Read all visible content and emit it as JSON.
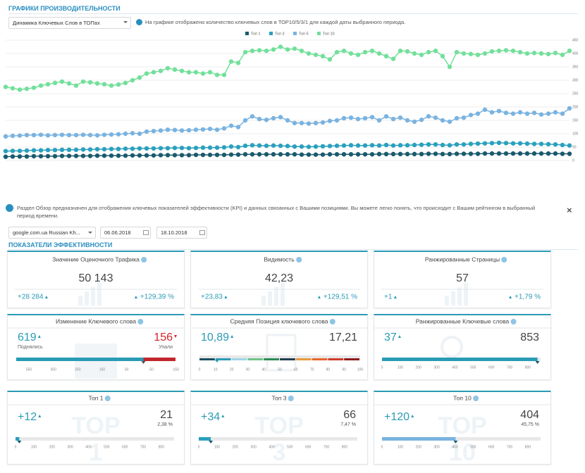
{
  "header": {
    "title": "ГРАФИКИ ПРОИЗВОДИТЕЛЬНОСТИ",
    "select": "Динамика Ключевых Слов в ТОПах",
    "info": "На графике отображено количество ключевых слов в ТОР10/5/3/1 для каждой даты выбранного периода."
  },
  "chart_data": {
    "type": "line",
    "series": [
      {
        "name": "Топ 1",
        "color": "#1b5a6e",
        "values": [
          14,
          15,
          15,
          15,
          16,
          16,
          16,
          16,
          17,
          17,
          17,
          17,
          17,
          18,
          18,
          18,
          18,
          18,
          19,
          19,
          19,
          19,
          20,
          20,
          20,
          20,
          20,
          21,
          21,
          21,
          21,
          21,
          22,
          22,
          23,
          23,
          23,
          23,
          23,
          23,
          23,
          23,
          22,
          22,
          22,
          22,
          23,
          23,
          23,
          23,
          23,
          23,
          23,
          24,
          24,
          24,
          24,
          24,
          24,
          24,
          25,
          25,
          24,
          24,
          25,
          25,
          25,
          25,
          26,
          26,
          26,
          26,
          26,
          26,
          26,
          26,
          26,
          26,
          26,
          25,
          25
        ]
      },
      {
        "name": "Топ 3",
        "color": "#2aa0be",
        "values": [
          35,
          36,
          36,
          37,
          38,
          38,
          39,
          39,
          40,
          40,
          40,
          41,
          41,
          42,
          42,
          43,
          43,
          44,
          44,
          45,
          45,
          45,
          46,
          46,
          47,
          47,
          46,
          47,
          48,
          48,
          48,
          49,
          52,
          50,
          55,
          57,
          56,
          55,
          56,
          55,
          54,
          52,
          52,
          51,
          52,
          53,
          54,
          55,
          56,
          57,
          56,
          56,
          57,
          56,
          58,
          56,
          57,
          57,
          58,
          59,
          60,
          60,
          58,
          57,
          60,
          60,
          62,
          63,
          64,
          65,
          66,
          65,
          64,
          64,
          63,
          62,
          62,
          61,
          60,
          58,
          56
        ]
      },
      {
        "name": "Топ 5",
        "color": "#7ab3e0",
        "values": [
          90,
          92,
          93,
          95,
          95,
          96,
          94,
          95,
          96,
          95,
          95,
          96,
          95,
          94,
          96,
          97,
          98,
          100,
          102,
          100,
          108,
          110,
          112,
          115,
          114,
          112,
          113,
          115,
          116,
          118,
          115,
          120,
          130,
          125,
          150,
          165,
          155,
          152,
          158,
          162,
          150,
          140,
          140,
          138,
          140,
          142,
          148,
          150,
          158,
          160,
          155,
          158,
          162,
          150,
          165,
          155,
          160,
          150,
          145,
          152,
          165,
          160,
          150,
          145,
          158,
          160,
          170,
          175,
          190,
          180,
          185,
          178,
          175,
          180,
          175,
          178,
          172,
          175,
          180,
          175,
          195
        ]
      },
      {
        "name": "Топ 10",
        "color": "#72e09a",
        "values": [
          275,
          270,
          265,
          268,
          272,
          280,
          285,
          290,
          295,
          288,
          280,
          295,
          292,
          288,
          285,
          280,
          284,
          290,
          300,
          310,
          325,
          330,
          335,
          345,
          340,
          335,
          330,
          330,
          325,
          330,
          320,
          320,
          370,
          365,
          405,
          410,
          412,
          410,
          415,
          425,
          415,
          418,
          410,
          400,
          395,
          390,
          378,
          405,
          410,
          400,
          395,
          405,
          410,
          400,
          390,
          380,
          410,
          408,
          400,
          395,
          405,
          410,
          390,
          350,
          405,
          400,
          398,
          395,
          400,
          408,
          410,
          412,
          410,
          405,
          400,
          402,
          400,
          398,
          402,
          395,
          410
        ]
      }
    ],
    "ylim": [
      0,
      450
    ],
    "yticks": [
      0,
      50,
      100,
      150,
      200,
      250,
      300,
      350,
      400,
      450
    ],
    "grid": true,
    "legend": "top"
  },
  "notice": {
    "text": "Раздел Обзор предназначен для отображения ключевых показателей эффективности (KPI) и данных связанных с Вашими позициями. Вы можете легко понять, что происходит с Вашим рейтингом в выбранный период времени.",
    "close": "×"
  },
  "filters": {
    "domain": "google.com.ua Russian Kh...",
    "date_from": "06.06.2018",
    "date_to": "18.10.2018"
  },
  "kpi": {
    "title": "ПОКАЗАТЕЛИ ЭФФЕКТИВНОСТИ",
    "cards": [
      {
        "kind": "summary",
        "title": "Значение Оценочного Трафика",
        "value": "50 143",
        "left": "+28 284",
        "right": "+129,39 %"
      },
      {
        "kind": "summary",
        "title": "Видимость",
        "value": "42,23",
        "left": "+23,83",
        "right": "+129,51 %"
      },
      {
        "kind": "summary",
        "title": "Ранжированные Страницы",
        "value": 57,
        "left": "+1",
        "right": "+1,79 %"
      },
      {
        "kind": "change",
        "title": "Изменение Ключевого слова",
        "left": 619,
        "left_caption": "Поднялись",
        "right": 156,
        "right_caption": "Упали",
        "ticks": [
          "550",
          "350",
          "250",
          "150",
          "50",
          "-50",
          "-150"
        ]
      },
      {
        "kind": "position",
        "title": "Средняя Позиция ключевого слова",
        "left": {
          "value": 10.89,
          "label": "10,89"
        },
        "right": "17,21",
        "lim": [
          0,
          100
        ],
        "ticks": [
          0,
          10,
          20,
          30,
          40,
          50,
          60,
          70,
          80,
          90,
          100
        ]
      },
      {
        "kind": "count",
        "title": "Ранжированные Ключевые слова",
        "left": "37",
        "right": 853,
        "lim": [
          0,
          870
        ],
        "ticks": [
          0,
          100,
          200,
          300,
          400,
          500,
          600,
          700,
          800
        ]
      },
      {
        "kind": "top",
        "title": "Топ 1",
        "left": "+12",
        "right": 21,
        "percent": "2,38 %",
        "watermark": [
          "TOP",
          "1"
        ],
        "lim": [
          0,
          870
        ],
        "ticks": [
          0,
          100,
          200,
          300,
          400,
          500,
          600,
          700,
          800
        ]
      },
      {
        "kind": "top",
        "title": "Топ 3",
        "left": "+34",
        "right": 66,
        "percent": "7,47 %",
        "watermark": [
          "TOP",
          "3"
        ],
        "lim": [
          0,
          870
        ],
        "ticks": [
          0,
          100,
          200,
          300,
          400,
          500,
          600,
          700,
          800
        ]
      },
      {
        "kind": "top",
        "title": "Топ 10",
        "left": "+120",
        "right": 404,
        "percent": "45,75 %",
        "watermark": [
          "TOP",
          "10"
        ],
        "lim": [
          0,
          870
        ],
        "ticks": [
          0,
          100,
          200,
          300,
          400,
          500,
          600,
          700,
          800
        ]
      }
    ]
  }
}
